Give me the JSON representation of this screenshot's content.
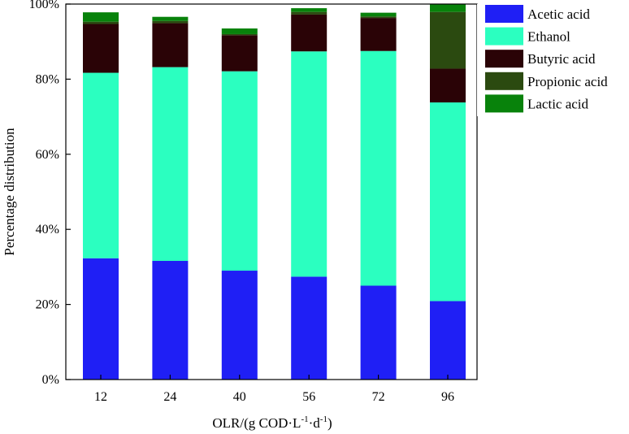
{
  "chart_data": {
    "type": "bar",
    "stacked": true,
    "title": "",
    "xlabel": {
      "main": "OLR/(g COD·L",
      "sup1": "-1",
      "mid": "·d",
      "sup2": "-1",
      "end": ")"
    },
    "ylabel": "Percentage distribution",
    "ylim": [
      0,
      100
    ],
    "ytick_values": [
      0,
      20,
      40,
      60,
      80,
      100
    ],
    "ytick_labels": [
      "0%",
      "20%",
      "40%",
      "60%",
      "80%",
      "100%"
    ],
    "categories": [
      "12",
      "24",
      "40",
      "56",
      "72",
      "96"
    ],
    "legend_position": "top-right",
    "series": [
      {
        "name": "Acetic acid",
        "color": "#1f1ff5",
        "values": [
          32.3,
          31.6,
          29.0,
          27.4,
          25.0,
          20.9
        ]
      },
      {
        "name": "Ethanol",
        "color": "#2bffc0",
        "values": [
          49.4,
          51.6,
          53.1,
          60.0,
          62.5,
          52.9
        ]
      },
      {
        "name": "Butyric acid",
        "color": "#2a0306",
        "values": [
          13.0,
          11.7,
          9.6,
          9.8,
          8.8,
          9.0
        ]
      },
      {
        "name": "Propionic acid",
        "color": "#2b4a10",
        "values": [
          0.6,
          0.6,
          0.3,
          0.7,
          0.4,
          15.1
        ]
      },
      {
        "name": "Lactic acid",
        "color": "#08820b",
        "values": [
          2.5,
          1.1,
          1.5,
          1.0,
          1.0,
          2.1
        ]
      }
    ]
  }
}
